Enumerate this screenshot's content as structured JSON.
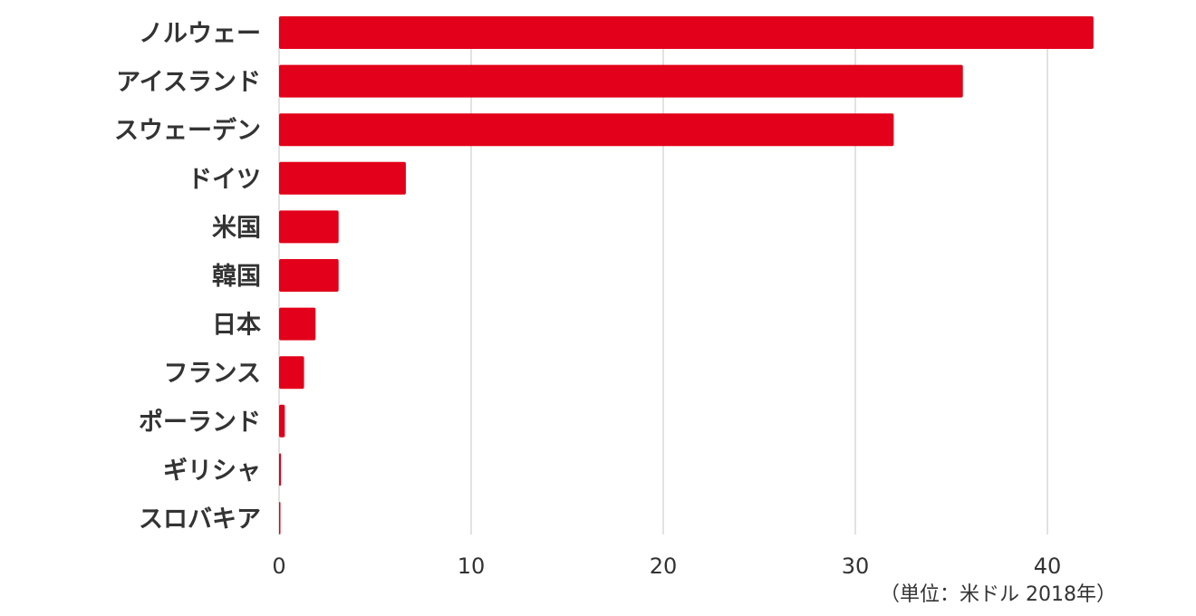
{
  "chart_data": {
    "type": "bar",
    "orientation": "horizontal",
    "categories": [
      "ノルウェー",
      "アイスランド",
      "スウェーデン",
      "ドイツ",
      "米国",
      "韓国",
      "日本",
      "フランス",
      "ポーランド",
      "ギリシャ",
      "スロバキア"
    ],
    "values": [
      42.4,
      35.6,
      32.0,
      6.6,
      3.1,
      3.1,
      1.9,
      1.3,
      0.3,
      0.1,
      0.05
    ],
    "x_ticks": [
      0,
      10,
      20,
      30,
      40
    ],
    "xlim": [
      0,
      45
    ],
    "unit_note": "（単位：米ドル 2018年）",
    "bar_color": "#e2001a",
    "grid_color": "#d9d9d9",
    "grid": true,
    "legend": "none"
  }
}
